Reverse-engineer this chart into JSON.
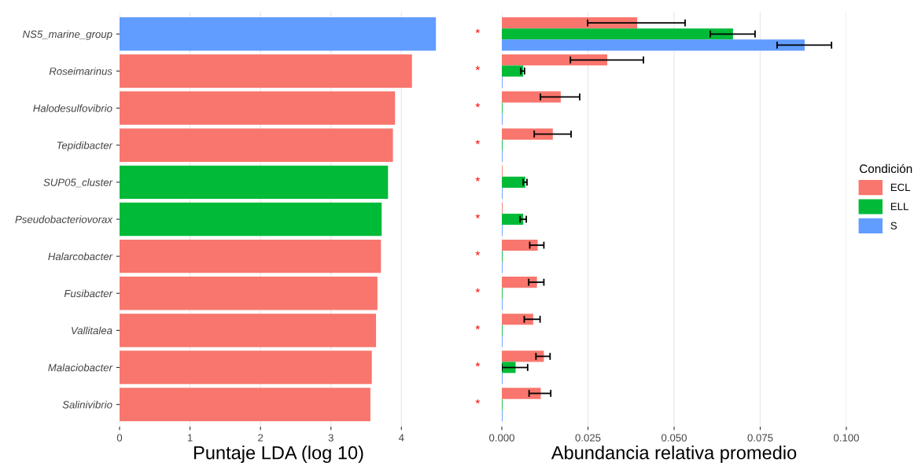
{
  "chart_data": [
    {
      "type": "bar",
      "orientation": "horizontal",
      "xlabel": "Puntaje LDA (log 10)",
      "categories": [
        "NS5_marine_group",
        "Roseimarinus",
        "Halodesulfovibrio",
        "Tepidibacter",
        "SUP05_cluster",
        "Pseudobacteriovorax",
        "Halarcobacter",
        "Fusibacter",
        "Vallitalea",
        "Malaciobacter",
        "Salinivibrio"
      ],
      "values": [
        4.49,
        4.15,
        3.91,
        3.88,
        3.81,
        3.72,
        3.71,
        3.66,
        3.64,
        3.58,
        3.56
      ],
      "colors": [
        "#619cff",
        "#f8766d",
        "#f8766d",
        "#f8766d",
        "#00ba38",
        "#00ba38",
        "#f8766d",
        "#f8766d",
        "#f8766d",
        "#f8766d",
        "#f8766d"
      ],
      "xlim": [
        0,
        4.51
      ],
      "xticks": [
        0,
        1,
        2,
        3,
        4
      ],
      "grid": true
    },
    {
      "type": "bar",
      "orientation": "horizontal",
      "xlabel": "Abundancia relativa promedio",
      "legend_title": "Condición",
      "legend": "right",
      "tick_labels": "x",
      "categories": [
        null,
        null,
        null,
        null,
        null,
        null,
        null,
        null,
        null,
        null,
        null
      ],
      "series": [
        {
          "name": "ECL",
          "color": "#f8766d",
          "values": [
            0.0393,
            0.0306,
            0.0171,
            0.0148,
            0.0002,
            0.0002,
            0.0104,
            0.0102,
            0.0091,
            0.0122,
            0.0113
          ],
          "errors": [
            [
              0.0249,
              0.0532
            ],
            [
              0.0199,
              0.0411
            ],
            [
              0.0112,
              0.0226
            ],
            [
              0.0094,
              0.0201
            ],
            null,
            null,
            [
              0.0081,
              0.0122
            ],
            [
              0.0078,
              0.0122
            ],
            [
              0.0065,
              0.0111
            ],
            [
              0.0099,
              0.014
            ],
            [
              0.0079,
              0.0142
            ]
          ]
        },
        {
          "name": "ELL",
          "color": "#00ba38",
          "values": [
            0.0671,
            0.0062,
            0.0002,
            0.0002,
            0.0068,
            0.0062,
            0.0002,
            0.0002,
            0.0002,
            0.004,
            0.0002
          ],
          "errors": [
            [
              0.0605,
              0.0735
            ],
            [
              0.0055,
              0.0066
            ],
            null,
            null,
            [
              0.0062,
              0.0073
            ],
            [
              0.0053,
              0.0071
            ],
            null,
            null,
            null,
            [
              0.0,
              0.0075
            ],
            null
          ]
        },
        {
          "name": "S",
          "color": "#619cff",
          "values": [
            0.0879,
            0.0002,
            0.0002,
            0.0002,
            0.0002,
            0.0002,
            0.0002,
            0.0002,
            0.0002,
            0.0002,
            0.0002
          ],
          "errors": [
            [
              0.0799,
              0.0957
            ],
            null,
            null,
            null,
            null,
            null,
            null,
            null,
            null,
            null,
            null
          ]
        }
      ],
      "annotations": [
        "*",
        "*",
        "*",
        "*",
        "*",
        "*",
        "*",
        "*",
        "*",
        "*",
        "*"
      ],
      "xlim": [
        0,
        0.1
      ],
      "xticks": [
        {
          "value": 0,
          "label": "0.000"
        },
        {
          "value": 0.025,
          "label": "0.025"
        },
        {
          "value": 0.05,
          "label": "0.050"
        },
        {
          "value": 0.075,
          "label": "0.075"
        },
        {
          "value": 0.1,
          "label": "0.100"
        }
      ],
      "grid": true
    }
  ]
}
